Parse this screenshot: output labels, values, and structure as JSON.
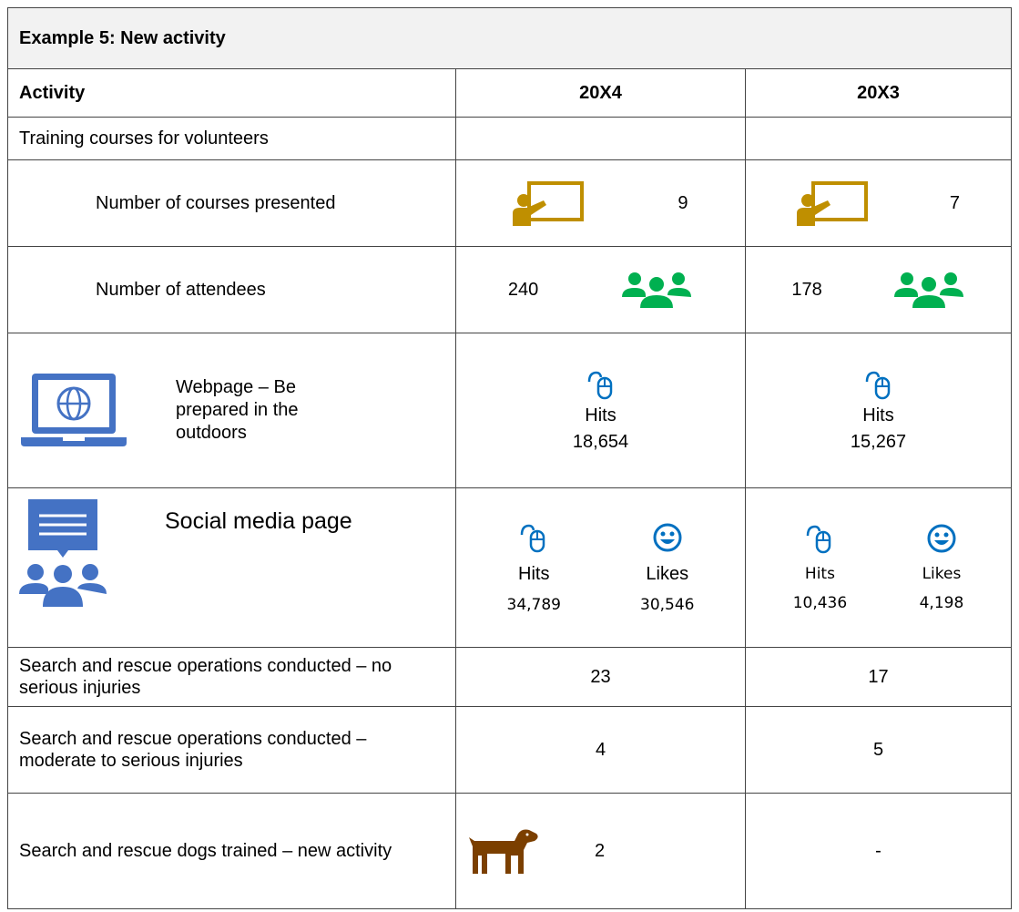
{
  "title": "Example 5: New activity",
  "header": [
    "Activity",
    "20X4",
    "20X3"
  ],
  "rows": [
    {
      "label": "Training courses for volunteers"
    },
    {
      "label": "Number of courses presented",
      "cells": [
        "9",
        "7"
      ]
    },
    {
      "label": "Number of attendees",
      "cells": [
        "240",
        "178"
      ]
    },
    {
      "label": "Webpage – Be prepared in the outdoors",
      "cells": [
        {
          "name": "Hits",
          "value": "18,654"
        },
        {
          "name": "Hits",
          "value": "15,267"
        }
      ]
    },
    {
      "label": "Social media page",
      "cells": [
        [
          {
            "name": "Hits",
            "value": "34,789"
          },
          {
            "name": "Likes",
            "value": "30,546"
          }
        ],
        [
          {
            "name": "Hits",
            "value": "10,436"
          },
          {
            "name": "Likes",
            "value": "4,198"
          }
        ]
      ]
    },
    {
      "label": "Search and rescue operations conducted – no serious injuries",
      "cells": [
        "23",
        "17"
      ]
    },
    {
      "label": "Search and rescue operations conducted – moderate to serious injuries",
      "cells": [
        "4",
        "5"
      ]
    },
    {
      "label": "Search and rescue dogs trained – new activity",
      "cells": [
        "2",
        "-"
      ]
    }
  ]
}
